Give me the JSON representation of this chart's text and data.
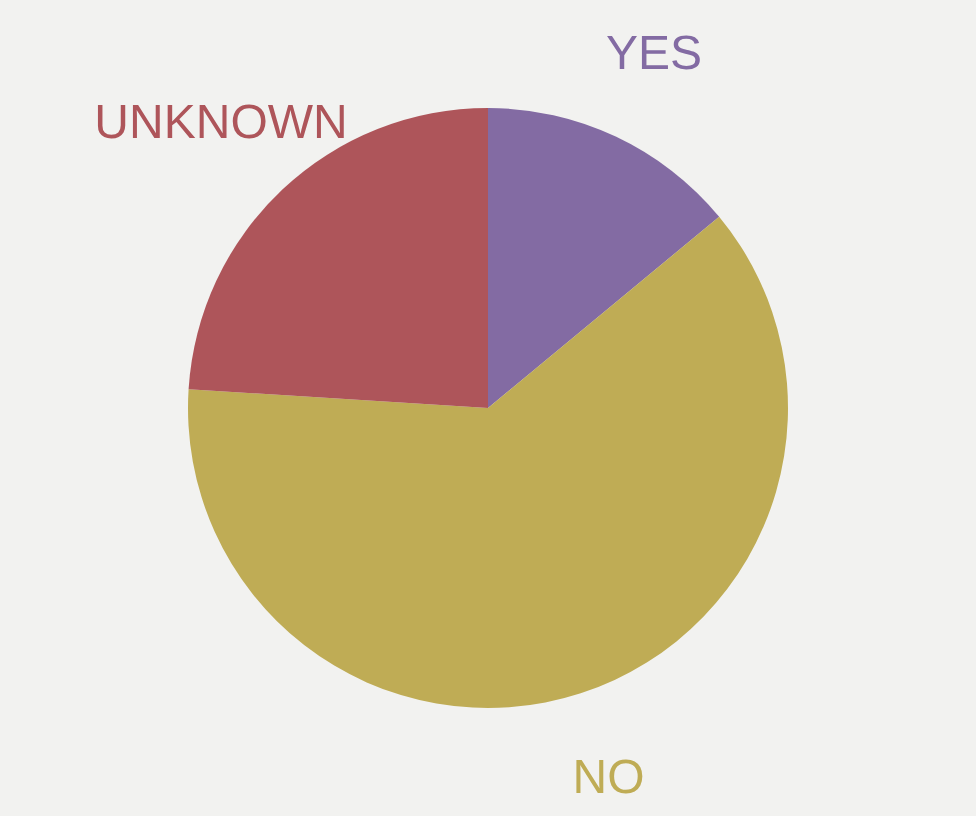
{
  "chart_data": {
    "type": "pie",
    "categories": [
      "YES",
      "NO",
      "UNKNOWN"
    ],
    "values": [
      14,
      62,
      24
    ],
    "colors": [
      "#836ba3",
      "#bfac55",
      "#ae555a"
    ]
  }
}
